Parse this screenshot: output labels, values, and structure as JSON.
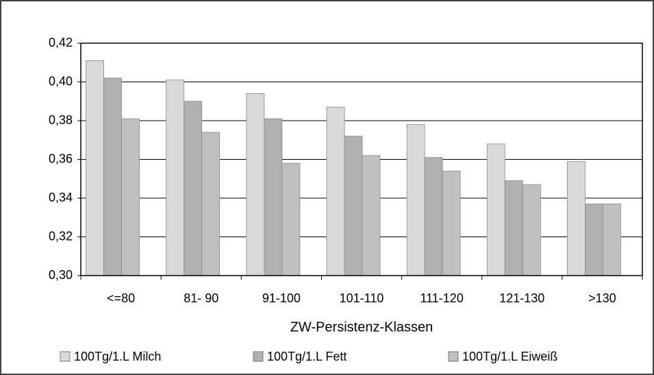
{
  "chart_data": {
    "type": "bar",
    "categories": [
      "<=80",
      "81- 90",
      "91-100",
      "101-110",
      "111-120",
      "121-130",
      ">130"
    ],
    "x_label": "ZW-Persistenz-Klassen",
    "series": [
      {
        "name": "100Tg/1.L Milch",
        "color": "#d9d9d9",
        "values": [
          0.411,
          0.401,
          0.394,
          0.387,
          0.378,
          0.368,
          0.359
        ]
      },
      {
        "name": "100Tg/1.L Fett",
        "color": "#b0b0b0",
        "values": [
          0.402,
          0.39,
          0.381,
          0.372,
          0.361,
          0.349,
          0.337
        ]
      },
      {
        "name": "100Tg/1.L Eiweiß",
        "color": "#c0c0c0",
        "values": [
          0.381,
          0.374,
          0.358,
          0.362,
          0.354,
          0.347,
          0.337
        ]
      }
    ],
    "ylim": [
      0.3,
      0.42
    ],
    "yticks": [
      {
        "value": 0.3,
        "label": "0,30"
      },
      {
        "value": 0.32,
        "label": "0,32"
      },
      {
        "value": 0.34,
        "label": "0,34"
      },
      {
        "value": 0.36,
        "label": "0,36"
      },
      {
        "value": 0.38,
        "label": "0,38"
      },
      {
        "value": 0.4,
        "label": "0,40"
      },
      {
        "value": 0.42,
        "label": "0,42"
      }
    ],
    "grid": true
  }
}
